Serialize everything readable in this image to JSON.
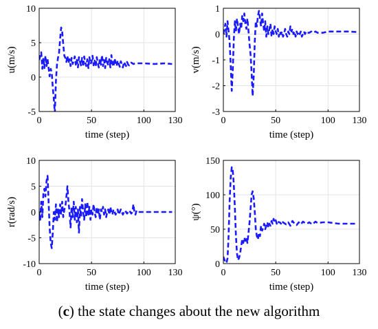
{
  "caption": {
    "letter": "c",
    "text": "the state changes about the new algorithm"
  },
  "chart_data": [
    {
      "type": "line",
      "title": "",
      "xlabel": "time (step)",
      "ylabel": "u(m/s)",
      "xlim": [
        0,
        130
      ],
      "ylim": [
        -5,
        10
      ],
      "xticks": [
        0,
        50,
        100,
        130
      ],
      "yticks": [
        -5,
        0,
        5,
        10
      ],
      "grid": true,
      "series": [
        {
          "color": "#1a1aff",
          "style": "dashed",
          "x": [
            0,
            2,
            3,
            4,
            5,
            6,
            7,
            8,
            9,
            10,
            11,
            12,
            13,
            14,
            15,
            16,
            17,
            18,
            19,
            20,
            21,
            22,
            23,
            24,
            25,
            26,
            27,
            28,
            29,
            30,
            31,
            32,
            33,
            34,
            35,
            36,
            37,
            38,
            39,
            40,
            41,
            42,
            43,
            44,
            45,
            46,
            47,
            48,
            49,
            50,
            51,
            52,
            53,
            54,
            55,
            56,
            57,
            58,
            59,
            60,
            61,
            62,
            63,
            64,
            65,
            66,
            67,
            68,
            69,
            70,
            71,
            72,
            73,
            74,
            75,
            76,
            77,
            78,
            79,
            80,
            81,
            82,
            83,
            84,
            85,
            86,
            87,
            88,
            90,
            92,
            95,
            100,
            110,
            120,
            127
          ],
          "y": [
            2.5,
            3.6,
            1.2,
            2.8,
            1.3,
            3.1,
            1.6,
            2.6,
            1.3,
            0.1,
            1.2,
            0.6,
            -1.5,
            -3.2,
            -5.2,
            -0.5,
            1.8,
            2.8,
            3.5,
            5.6,
            7.2,
            6.6,
            4.8,
            3.1,
            2.8,
            2.2,
            3.1,
            2.0,
            2.6,
            1.6,
            2.8,
            1.9,
            2.4,
            3.0,
            1.8,
            2.5,
            1.4,
            2.9,
            2.2,
            1.7,
            2.8,
            1.5,
            3.0,
            2.1,
            1.6,
            2.6,
            1.3,
            2.9,
            1.9,
            2.2,
            3.1,
            1.7,
            2.4,
            1.5,
            2.9,
            2.0,
            1.4,
            2.7,
            1.8,
            3.2,
            1.6,
            2.5,
            1.3,
            2.8,
            2.1,
            1.7,
            2.6,
            1.4,
            3.2,
            2.0,
            1.5,
            2.7,
            2.1,
            1.6,
            2.4,
            1.9,
            1.5,
            2.3,
            1.8,
            1.4,
            2.2,
            1.9,
            1.6,
            2.2,
            1.8,
            1.7,
            2.0,
            2.1,
            1.9,
            2.0,
            2.0,
            2.0,
            1.9,
            2.0,
            1.9
          ]
        }
      ]
    },
    {
      "type": "line",
      "title": "",
      "xlabel": "time (step)",
      "ylabel": "v(m/s)",
      "xlim": [
        0,
        130
      ],
      "ylim": [
        -3,
        1
      ],
      "xticks": [
        0,
        50,
        100,
        130
      ],
      "yticks": [
        -3,
        -2,
        -1,
        0,
        1
      ],
      "grid": true,
      "series": [
        {
          "color": "#1a1aff",
          "style": "dashed",
          "x": [
            0,
            1,
            2,
            3,
            4,
            5,
            6,
            7,
            8,
            9,
            10,
            11,
            12,
            13,
            14,
            15,
            16,
            17,
            18,
            19,
            20,
            21,
            22,
            23,
            24,
            25,
            26,
            27,
            28,
            29,
            30,
            31,
            32,
            33,
            34,
            35,
            36,
            37,
            38,
            39,
            40,
            41,
            42,
            43,
            44,
            45,
            46,
            47,
            48,
            49,
            50,
            51,
            52,
            53,
            54,
            55,
            56,
            57,
            58,
            59,
            60,
            61,
            62,
            63,
            64,
            65,
            66,
            67,
            68,
            69,
            70,
            71,
            72,
            73,
            74,
            75,
            76,
            77,
            78,
            79,
            80,
            82,
            84,
            86,
            88,
            90,
            95,
            100,
            110,
            120,
            127
          ],
          "y": [
            0.0,
            0.2,
            0.4,
            -0.1,
            0.5,
            0.1,
            -0.3,
            -1.2,
            -2.2,
            -1.4,
            -0.2,
            0.5,
            0.1,
            0.6,
            0.3,
            0.0,
            0.4,
            0.2,
            0.7,
            0.5,
            0.8,
            0.4,
            0.2,
            0.6,
            0.1,
            -0.4,
            -0.8,
            -1.5,
            -2.4,
            -1.6,
            -0.3,
            0.5,
            0.3,
            0.7,
            0.9,
            0.6,
            0.3,
            0.8,
            0.4,
            0.1,
            0.5,
            -0.1,
            0.3,
            0.0,
            0.2,
            0.4,
            -0.1,
            0.2,
            0.0,
            0.3,
            0.1,
            0.0,
            0.2,
            -0.1,
            0.1,
            0.0,
            0.1,
            -0.1,
            0.0,
            0.2,
            0.0,
            -0.1,
            0.1,
            0.0,
            0.3,
            0.1,
            0.2,
            0.0,
            0.1,
            -0.1,
            0.1,
            0.0,
            0.1,
            0.0,
            0.1,
            -0.1,
            0.0,
            0.1,
            0.0,
            0.1,
            0.05,
            0.05,
            0.1,
            0.05,
            0.1,
            0.05,
            0.05,
            0.1,
            0.1,
            0.1,
            0.08
          ]
        }
      ]
    },
    {
      "type": "line",
      "title": "",
      "xlabel": "time (step)",
      "ylabel": "r(rad/s)",
      "xlim": [
        0,
        130
      ],
      "ylim": [
        -10,
        10
      ],
      "xticks": [
        0,
        50,
        100,
        130
      ],
      "yticks": [
        -10,
        -5,
        0,
        5,
        10
      ],
      "grid": true,
      "series": [
        {
          "color": "#1a1aff",
          "style": "dashed",
          "x": [
            0,
            1,
            2,
            3,
            4,
            5,
            6,
            7,
            8,
            9,
            10,
            11,
            12,
            13,
            14,
            15,
            16,
            17,
            18,
            19,
            20,
            21,
            22,
            23,
            24,
            25,
            26,
            27,
            28,
            29,
            30,
            31,
            32,
            33,
            34,
            35,
            36,
            37,
            38,
            39,
            40,
            41,
            42,
            43,
            44,
            45,
            46,
            47,
            48,
            49,
            50,
            51,
            52,
            53,
            54,
            55,
            56,
            57,
            58,
            59,
            60,
            61,
            62,
            63,
            64,
            65,
            66,
            67,
            68,
            69,
            70,
            71,
            72,
            73,
            74,
            75,
            76,
            77,
            78,
            79,
            80,
            81,
            82,
            83,
            84,
            85,
            86,
            87,
            88,
            89,
            90,
            91,
            92,
            93,
            95,
            100,
            110,
            120,
            127
          ],
          "y": [
            0.0,
            -1.5,
            2.0,
            -1.0,
            3.5,
            4.5,
            3.0,
            6.0,
            7.0,
            2.0,
            -3.0,
            -6.0,
            -7.0,
            -4.0,
            0.0,
            -1.5,
            1.5,
            -2.0,
            0.5,
            -1.0,
            1.5,
            -0.5,
            2.0,
            -1.0,
            0.5,
            1.0,
            3.0,
            5.0,
            2.0,
            0.0,
            -3.0,
            1.0,
            -1.0,
            2.0,
            -1.5,
            1.0,
            -2.0,
            0.5,
            -4.0,
            1.0,
            -1.0,
            2.5,
            0.0,
            -1.5,
            1.5,
            -1.0,
            2.0,
            -0.5,
            1.0,
            -1.5,
            0.5,
            -0.5,
            1.5,
            0.0,
            -1.0,
            1.0,
            -0.5,
            0.5,
            -1.5,
            0.5,
            0.0,
            1.0,
            -0.5,
            0.5,
            -1.0,
            0.0,
            0.5,
            -0.5,
            1.0,
            0.0,
            -0.5,
            0.5,
            0.0,
            -0.5,
            0.0,
            0.5,
            -0.5,
            0.0,
            0.5,
            0.0,
            -0.5,
            0.0,
            0.3,
            0.0,
            -0.3,
            0.0,
            0.3,
            0.0,
            -0.3,
            0.0,
            1.5,
            0.0,
            -0.5,
            0.3,
            0.0,
            0.0,
            0.0,
            0.0,
            0.0
          ]
        }
      ]
    },
    {
      "type": "line",
      "title": "",
      "xlabel": "time (step)",
      "ylabel": "ψ(°)",
      "xlim": [
        0,
        130
      ],
      "ylim": [
        0,
        150
      ],
      "xticks": [
        0,
        50,
        100,
        130
      ],
      "yticks": [
        0,
        50,
        100,
        150
      ],
      "grid": true,
      "series": [
        {
          "color": "#1a1aff",
          "style": "dashed",
          "x": [
            0,
            1,
            2,
            3,
            4,
            5,
            6,
            7,
            8,
            9,
            10,
            11,
            12,
            13,
            14,
            15,
            16,
            17,
            18,
            19,
            20,
            21,
            22,
            23,
            24,
            25,
            26,
            27,
            28,
            29,
            30,
            31,
            32,
            33,
            34,
            35,
            36,
            37,
            38,
            39,
            40,
            41,
            42,
            43,
            44,
            45,
            46,
            47,
            48,
            49,
            50,
            51,
            52,
            53,
            54,
            55,
            56,
            57,
            58,
            60,
            62,
            64,
            66,
            68,
            70,
            72,
            74,
            76,
            78,
            80,
            82,
            85,
            88,
            90,
            95,
            100,
            110,
            120,
            127
          ],
          "y": [
            10,
            6,
            2,
            1,
            8,
            40,
            90,
            125,
            140,
            135,
            115,
            80,
            40,
            15,
            5,
            8,
            15,
            25,
            35,
            30,
            38,
            33,
            38,
            30,
            45,
            60,
            80,
            100,
            105,
            95,
            75,
            50,
            40,
            35,
            45,
            40,
            55,
            48,
            52,
            58,
            50,
            55,
            60,
            52,
            58,
            55,
            62,
            58,
            65,
            60,
            63,
            58,
            62,
            60,
            60,
            58,
            62,
            60,
            59,
            57,
            60,
            55,
            62,
            58,
            56,
            60,
            57,
            61,
            59,
            58,
            60,
            57,
            61,
            59,
            60,
            60,
            58,
            58,
            58
          ]
        }
      ]
    }
  ]
}
